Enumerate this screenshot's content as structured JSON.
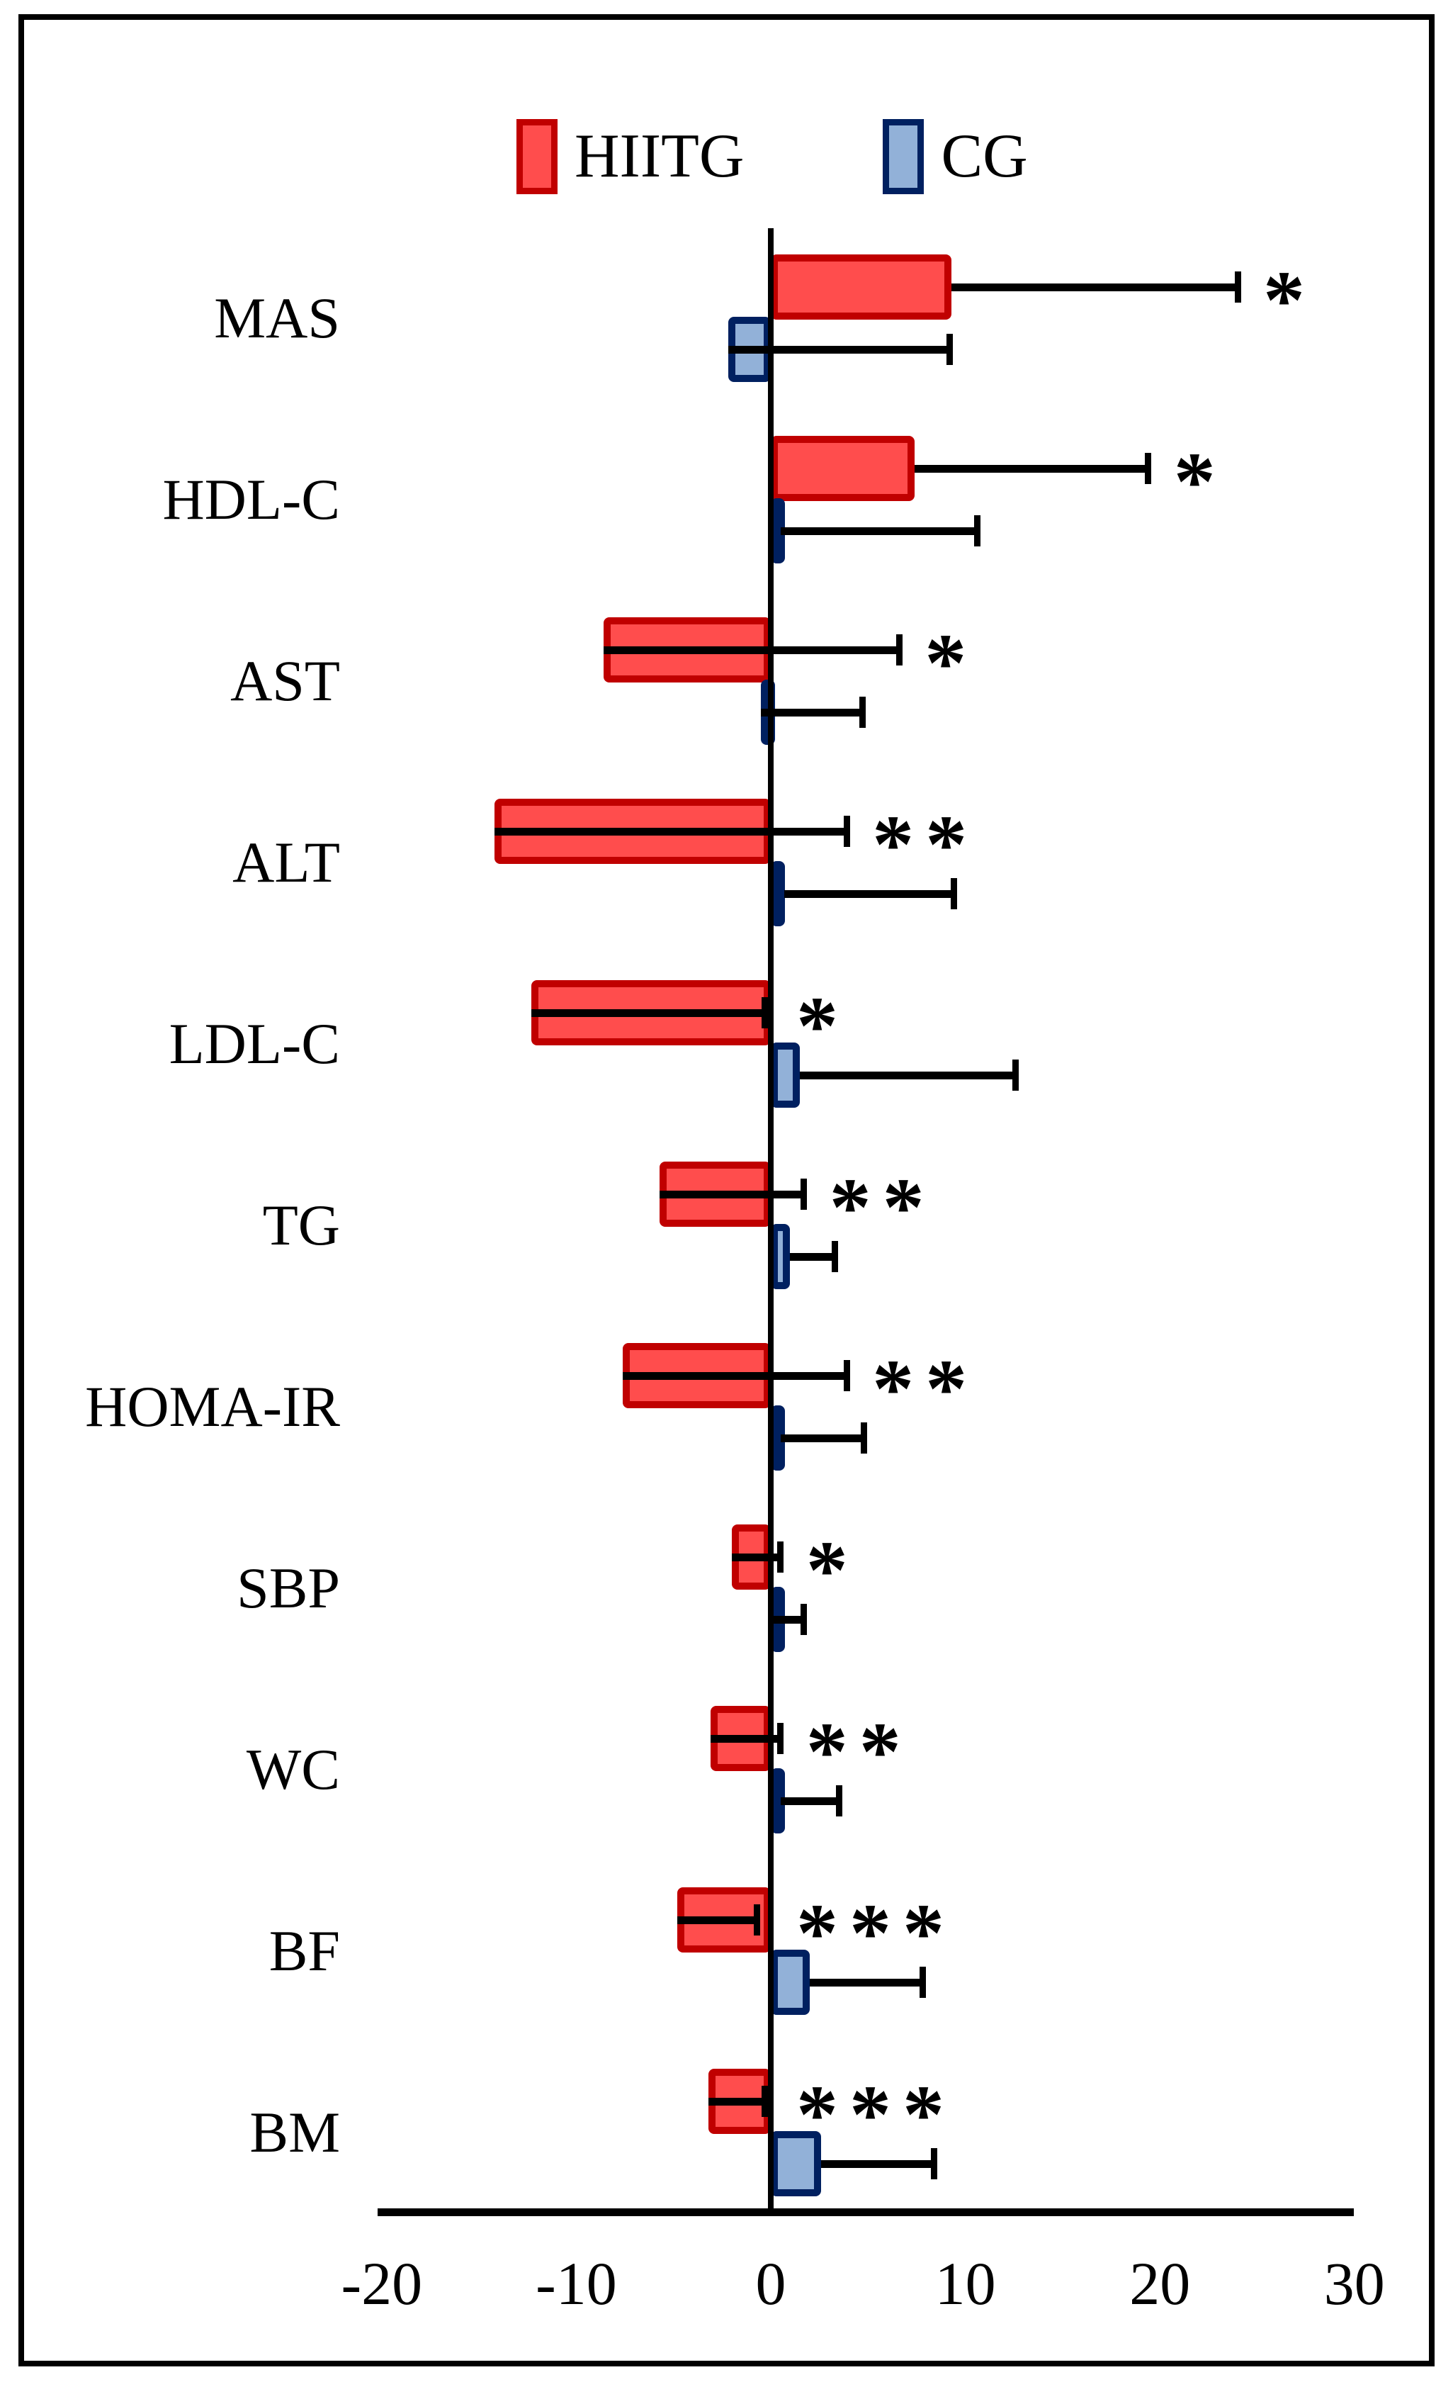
{
  "chart_data": {
    "type": "bar",
    "orientation": "horizontal",
    "title": "",
    "categories": [
      "MAS",
      "HDL-C",
      "AST",
      "ALT",
      "LDL-C",
      "TG",
      "HOMA-IR",
      "SBP",
      "WC",
      "BF",
      "BM"
    ],
    "series": [
      {
        "name": "HIITG",
        "fill_color": "#FF4D4D",
        "border_color": "#C00000",
        "values": [
          9.3,
          7.4,
          -8.6,
          -14.2,
          -12.3,
          -5.7,
          -7.6,
          -2.0,
          -3.1,
          -4.8,
          -3.2
        ],
        "error_bar_end": [
          24.0,
          19.4,
          6.6,
          3.9,
          -0.3,
          1.7,
          3.9,
          0.5,
          0.5,
          -0.7,
          -0.3
        ]
      },
      {
        "name": "CG",
        "fill_color": "#92B1D8",
        "border_color": "#002060",
        "values": [
          -2.2,
          0.5,
          -0.5,
          0.7,
          1.5,
          1.0,
          0.5,
          0.1,
          0.5,
          2.0,
          2.6
        ],
        "error_bar_end": [
          9.2,
          10.6,
          4.7,
          9.4,
          12.6,
          3.3,
          4.8,
          1.7,
          3.5,
          7.8,
          8.4
        ]
      }
    ],
    "significance": [
      "*",
      "*",
      "*",
      "**",
      "*",
      "**",
      "**",
      "*",
      "**",
      "***",
      "***"
    ],
    "x_axis": {
      "min": -20,
      "max": 30,
      "ticks": [
        "-20",
        "-10",
        "0",
        "10",
        "20",
        "30"
      ]
    },
    "legend": {
      "position": "top",
      "entries": [
        "HIITG",
        "CG"
      ]
    },
    "grid": false,
    "axis_color": "#000000",
    "error_bar_color": "#000000"
  }
}
